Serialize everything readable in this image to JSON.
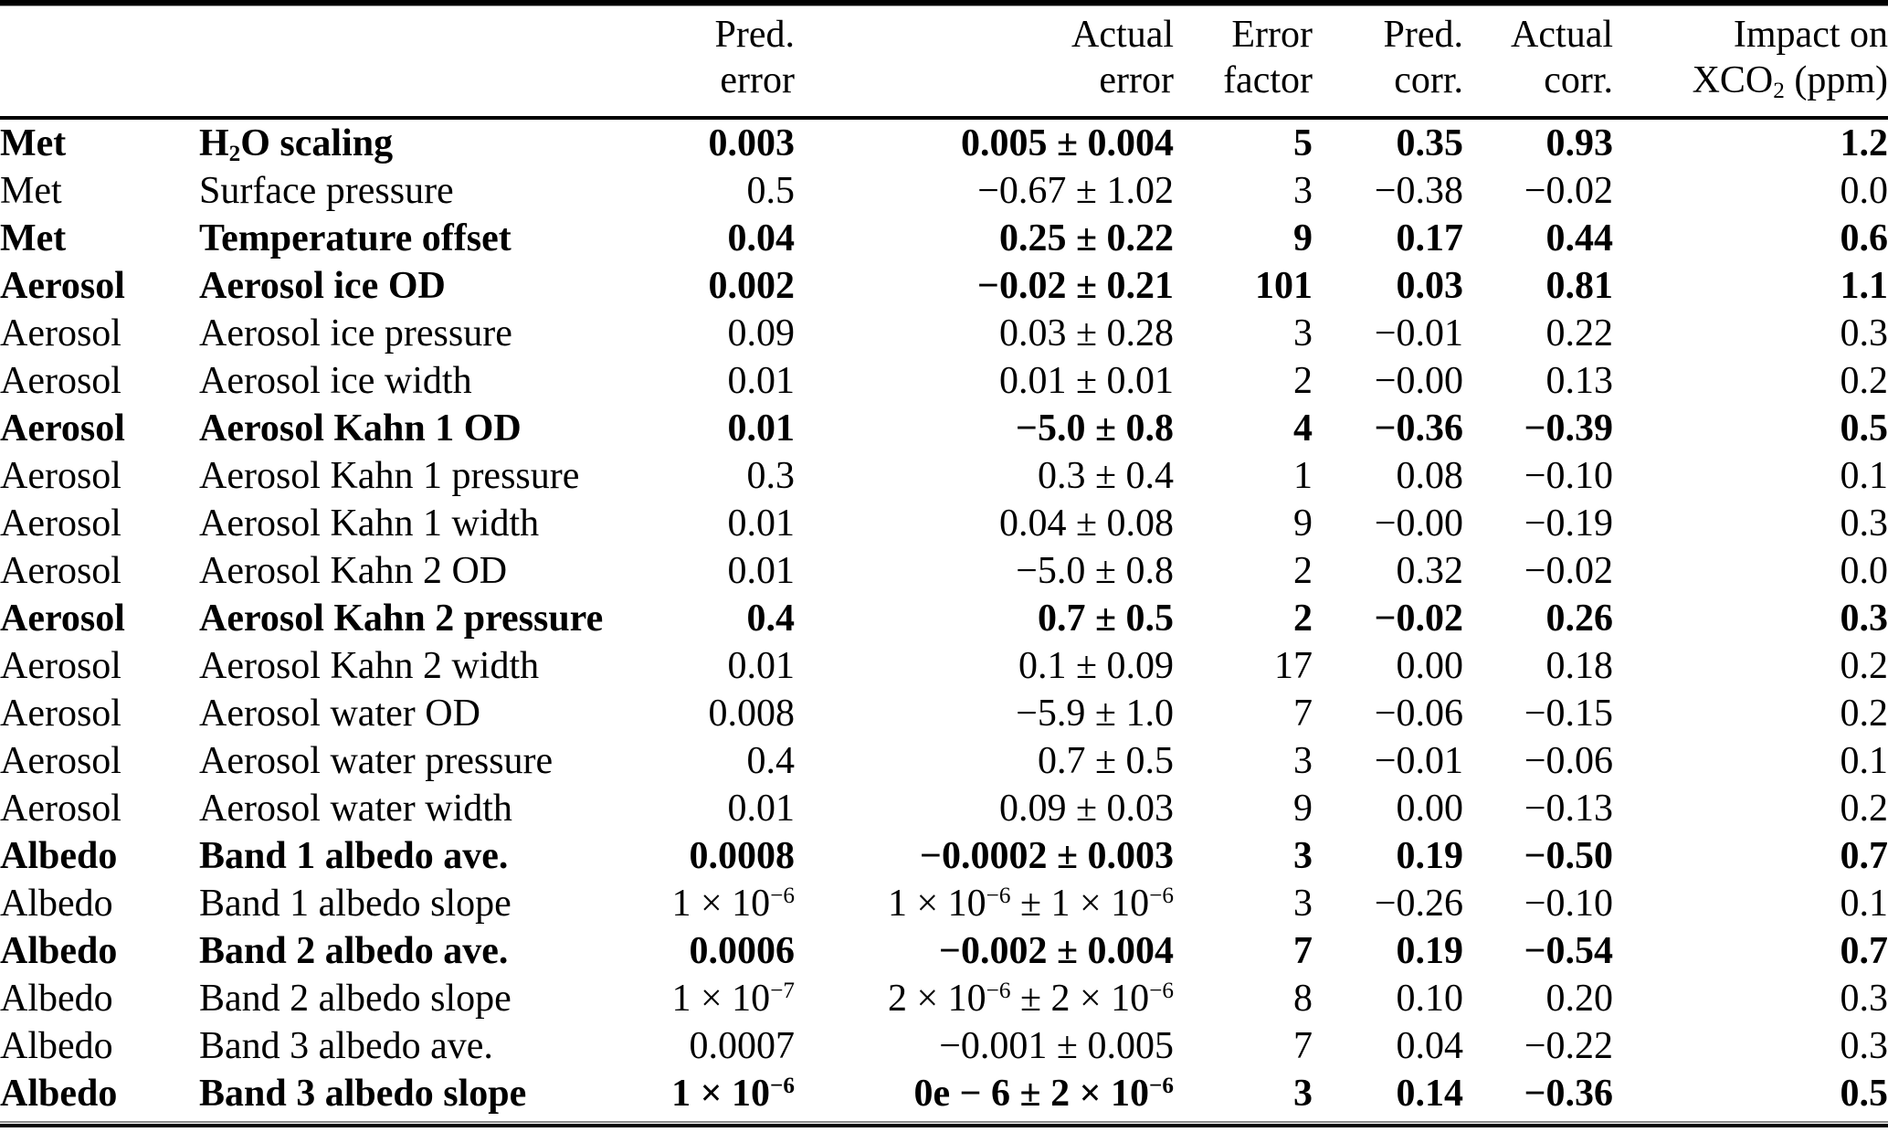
{
  "table": {
    "columns": [
      {
        "key": "category",
        "label_line1": "",
        "label_line2": ""
      },
      {
        "key": "parameter",
        "label_line1": "",
        "label_line2": ""
      },
      {
        "key": "pred_error",
        "label_line1": "Pred.",
        "label_line2": "error"
      },
      {
        "key": "actual_error",
        "label_line1": "Actual",
        "label_line2": "error"
      },
      {
        "key": "error_factor",
        "label_line1": "Error",
        "label_line2": "factor"
      },
      {
        "key": "pred_corr",
        "label_line1": "Pred.",
        "label_line2": "corr."
      },
      {
        "key": "actual_corr",
        "label_line1": "Actual",
        "label_line2": "corr."
      },
      {
        "key": "impact",
        "label_line1": "Impact on",
        "label_line2": "XCO_{2} (ppm)"
      }
    ],
    "rows": [
      {
        "category": "Met",
        "parameter": "H_{2}O scaling",
        "pred_error": "0.003",
        "actual_error": "0.005 ± 0.004",
        "error_factor": "5",
        "pred_corr": "0.35",
        "actual_corr": "0.93",
        "impact": "1.2",
        "bold": true
      },
      {
        "category": "Met",
        "parameter": "Surface pressure",
        "pred_error": "0.5",
        "actual_error": "−0.67 ± 1.02",
        "error_factor": "3",
        "pred_corr": "−0.38",
        "actual_corr": "−0.02",
        "impact": "0.0",
        "bold": false
      },
      {
        "category": "Met",
        "parameter": "Temperature offset",
        "pred_error": "0.04",
        "actual_error": "0.25 ± 0.22",
        "error_factor": "9",
        "pred_corr": "0.17",
        "actual_corr": "0.44",
        "impact": "0.6",
        "bold": true
      },
      {
        "category": "Aerosol",
        "parameter": "Aerosol ice OD",
        "pred_error": "0.002",
        "actual_error": "−0.02 ± 0.21",
        "error_factor": "101",
        "pred_corr": "0.03",
        "actual_corr": "0.81",
        "impact": "1.1",
        "bold": true
      },
      {
        "category": "Aerosol",
        "parameter": "Aerosol ice pressure",
        "pred_error": "0.09",
        "actual_error": "0.03 ± 0.28",
        "error_factor": "3",
        "pred_corr": "−0.01",
        "actual_corr": "0.22",
        "impact": "0.3",
        "bold": false
      },
      {
        "category": "Aerosol",
        "parameter": "Aerosol ice width",
        "pred_error": "0.01",
        "actual_error": "0.01 ± 0.01",
        "error_factor": "2",
        "pred_corr": "−0.00",
        "actual_corr": "0.13",
        "impact": "0.2",
        "bold": false
      },
      {
        "category": "Aerosol",
        "parameter": "Aerosol Kahn 1 OD",
        "pred_error": "0.01",
        "actual_error": "−5.0 ± 0.8",
        "error_factor": "4",
        "pred_corr": "−0.36",
        "actual_corr": "−0.39",
        "impact": "0.5",
        "bold": true
      },
      {
        "category": "Aerosol",
        "parameter": "Aerosol Kahn 1 pressure",
        "pred_error": "0.3",
        "actual_error": "0.3 ± 0.4",
        "error_factor": "1",
        "pred_corr": "0.08",
        "actual_corr": "−0.10",
        "impact": "0.1",
        "bold": false
      },
      {
        "category": "Aerosol",
        "parameter": "Aerosol Kahn 1 width",
        "pred_error": "0.01",
        "actual_error": "0.04 ± 0.08",
        "error_factor": "9",
        "pred_corr": "−0.00",
        "actual_corr": "−0.19",
        "impact": "0.3",
        "bold": false
      },
      {
        "category": "Aerosol",
        "parameter": "Aerosol Kahn 2 OD",
        "pred_error": "0.01",
        "actual_error": "−5.0 ± 0.8",
        "error_factor": "2",
        "pred_corr": "0.32",
        "actual_corr": "−0.02",
        "impact": "0.0",
        "bold": false
      },
      {
        "category": "Aerosol",
        "parameter": "Aerosol Kahn 2 pressure",
        "pred_error": "0.4",
        "actual_error": "0.7 ± 0.5",
        "error_factor": "2",
        "pred_corr": "−0.02",
        "actual_corr": "0.26",
        "impact": "0.3",
        "bold": true
      },
      {
        "category": "Aerosol",
        "parameter": "Aerosol Kahn 2 width",
        "pred_error": "0.01",
        "actual_error": "0.1 ± 0.09",
        "error_factor": "17",
        "pred_corr": "0.00",
        "actual_corr": "0.18",
        "impact": "0.2",
        "bold": false
      },
      {
        "category": "Aerosol",
        "parameter": "Aerosol water OD",
        "pred_error": "0.008",
        "actual_error": "−5.9 ± 1.0",
        "error_factor": "7",
        "pred_corr": "−0.06",
        "actual_corr": "−0.15",
        "impact": "0.2",
        "bold": false
      },
      {
        "category": "Aerosol",
        "parameter": "Aerosol water pressure",
        "pred_error": "0.4",
        "actual_error": "0.7 ± 0.5",
        "error_factor": "3",
        "pred_corr": "−0.01",
        "actual_corr": "−0.06",
        "impact": "0.1",
        "bold": false
      },
      {
        "category": "Aerosol",
        "parameter": "Aerosol water width",
        "pred_error": "0.01",
        "actual_error": "0.09 ± 0.03",
        "error_factor": "9",
        "pred_corr": "0.00",
        "actual_corr": "−0.13",
        "impact": "0.2",
        "bold": false
      },
      {
        "category": "Albedo",
        "parameter": "Band 1 albedo ave.",
        "pred_error": "0.0008",
        "actual_error": "−0.0002 ± 0.003",
        "error_factor": "3",
        "pred_corr": "0.19",
        "actual_corr": "−0.50",
        "impact": "0.7",
        "bold": true
      },
      {
        "category": "Albedo",
        "parameter": "Band 1 albedo slope",
        "pred_error": "1 × 10^{−6}",
        "actual_error": "1 × 10^{−6} ± 1 × 10^{−6}",
        "error_factor": "3",
        "pred_corr": "−0.26",
        "actual_corr": "−0.10",
        "impact": "0.1",
        "bold": false
      },
      {
        "category": "Albedo",
        "parameter": "Band 2 albedo ave.",
        "pred_error": "0.0006",
        "actual_error": "−0.002 ± 0.004",
        "error_factor": "7",
        "pred_corr": "0.19",
        "actual_corr": "−0.54",
        "impact": "0.7",
        "bold": true
      },
      {
        "category": "Albedo",
        "parameter": "Band 2 albedo slope",
        "pred_error": "1 × 10^{−7}",
        "actual_error": "2 × 10^{−6} ± 2 × 10^{−6}",
        "error_factor": "8",
        "pred_corr": "0.10",
        "actual_corr": "0.20",
        "impact": "0.3",
        "bold": false
      },
      {
        "category": "Albedo",
        "parameter": "Band 3 albedo ave.",
        "pred_error": "0.0007",
        "actual_error": "−0.001 ± 0.005",
        "error_factor": "7",
        "pred_corr": "0.04",
        "actual_corr": "−0.22",
        "impact": "0.3",
        "bold": false
      },
      {
        "category": "Albedo",
        "parameter": "Band 3 albedo slope",
        "pred_error": "1 × 10^{−6}",
        "actual_error": "0e − 6 ± 2 × 10^{−6}",
        "error_factor": "3",
        "pred_corr": "0.14",
        "actual_corr": "−0.36",
        "impact": "0.5",
        "bold": true
      }
    ]
  },
  "styles": {
    "background": "#ffffff",
    "text_color": "#000000",
    "rule_color": "#000000"
  }
}
